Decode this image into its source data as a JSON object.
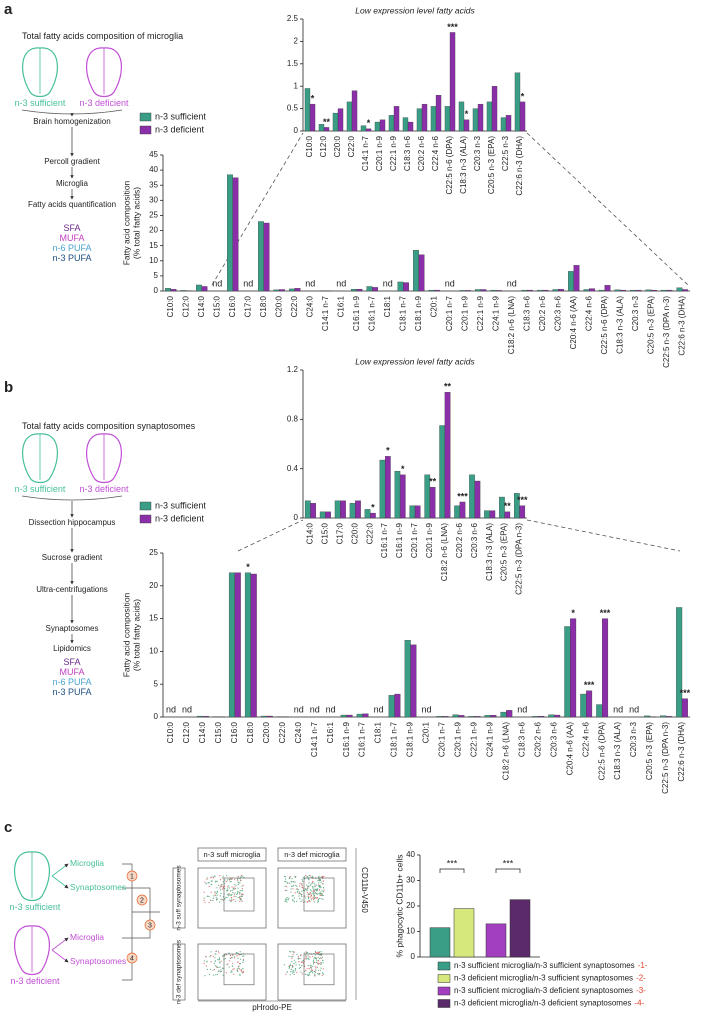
{
  "chart_data": [
    {
      "type": "grouped_bar",
      "ylabel": [
        "Fatty acid composition",
        "(% total fatty acids)"
      ],
      "categories": [
        "C10:0",
        "C12:0",
        "C14:0",
        "C15:0",
        "C16:0",
        "C17:0",
        "C18:0",
        "C20:0",
        "C22:0",
        "C24:0",
        "C14:1 n-7",
        "C16:1",
        "C16:1 n-9",
        "C16:1 n-7",
        "C18:1",
        "C18:1 n-7",
        "C18:1 n-9",
        "C20:1",
        "C20:1 n-7",
        "C20:1 n-9",
        "C22:1 n-9",
        "C24:1 n-9",
        "C18:2 n-6 (LNA)",
        "C18:3 n-6",
        "C20:2 n-6",
        "C20:3 n-6",
        "C20:4 n-6 (AA)",
        "C22:4 n-6",
        "C22:5 n-6 (DPA)",
        "C18:3 n-3 (ALA)",
        "C20:3 n-3",
        "C20:5 n-3 (EPA)",
        "C22:5 n-3 (DPA n-3)",
        "C22:6 n-3 (DHA)"
      ],
      "category_colors": [
        "#6b2a8c",
        "#6b2a8c",
        "#6b2a8c",
        "#6b2a8c",
        "#6b2a8c",
        "#6b2a8c",
        "#6b2a8c",
        "#6b2a8c",
        "#6b2a8c",
        "#6b2a8c",
        "#c23fc2",
        "#c23fc2",
        "#c23fc2",
        "#c23fc2",
        "#c23fc2",
        "#c23fc2",
        "#c23fc2",
        "#c23fc2",
        "#c23fc2",
        "#c23fc2",
        "#c23fc2",
        "#c23fc2",
        "#4aa3cf",
        "#4aa3cf",
        "#4aa3cf",
        "#4aa3cf",
        "#4aa3cf",
        "#4aa3cf",
        "#4aa3cf",
        "#1f4e80",
        "#1f4e80",
        "#1f4e80",
        "#1f4e80",
        "#1f4e80"
      ],
      "value_labels": [
        null,
        null,
        null,
        "nd",
        null,
        "nd",
        null,
        null,
        null,
        "nd",
        null,
        "nd",
        null,
        null,
        "nd",
        null,
        null,
        null,
        "nd",
        null,
        null,
        null,
        "nd",
        null,
        null,
        null,
        null,
        null,
        null,
        null,
        null,
        null,
        null,
        null
      ],
      "series": [
        {
          "name": "n-3 sufficient",
          "color": "#3a9e86",
          "values": [
            0.9,
            0.2,
            2,
            null,
            38.5,
            null,
            23,
            0.4,
            0.7,
            null,
            0.1,
            null,
            0.6,
            1.5,
            null,
            3,
            13.5,
            0.3,
            null,
            0.2,
            0.5,
            0.3,
            null,
            0.3,
            0.3,
            0.5,
            6.5,
            0.5,
            0.3,
            0.4,
            0.3,
            0.4,
            0.3,
            1.1
          ]
        },
        {
          "name": "n-3 deficient",
          "color": "#8b2fa8",
          "values": [
            0.6,
            0.1,
            1.5,
            null,
            37.5,
            null,
            22.5,
            0.5,
            0.9,
            null,
            0.05,
            null,
            0.6,
            1.2,
            null,
            2.8,
            12,
            0.3,
            null,
            0.2,
            0.5,
            0.2,
            null,
            0.3,
            0.3,
            0.6,
            8.5,
            0.8,
            1.9,
            0.3,
            0.3,
            0.3,
            0.3,
            0.5
          ]
        }
      ],
      "ylim": [
        0,
        45
      ],
      "yticks": [
        0,
        5,
        10,
        15,
        20,
        25,
        30,
        35,
        40,
        45
      ]
    },
    {
      "type": "grouped_bar",
      "title": "Low expression level fatty acids",
      "categories": [
        "C10:0",
        "C12:0",
        "C20:0",
        "C22:0",
        "C14:1 n-7",
        "C20:1 n-9",
        "C22:1 n-9",
        "C18:3 n-6",
        "C20:2 n-6",
        "C22:4 n-6",
        "C22:5 n-6 (DPA)",
        "C18:3 n-3 (ALA)",
        "C20:3 n-3",
        "C20:5 n-3 (EPA)",
        "C22:5 n-3",
        "C22:6 n-3 (DHA)"
      ],
      "category_colors": [
        "#6b2a8c",
        "#6b2a8c",
        "#6b2a8c",
        "#6b2a8c",
        "#c23fc2",
        "#c23fc2",
        "#c23fc2",
        "#4aa3cf",
        "#4aa3cf",
        "#4aa3cf",
        "#4aa3cf",
        "#1f4e80",
        "#1f4e80",
        "#1f4e80",
        "#1f4e80",
        "#1f4e80"
      ],
      "series": [
        {
          "color": "#3a9e86",
          "values": [
            0.95,
            0.15,
            0.4,
            0.65,
            0.12,
            0.2,
            0.35,
            0.3,
            0.5,
            0.55,
            0.55,
            0.65,
            0.5,
            0.65,
            0.3,
            1.3
          ]
        },
        {
          "color": "#8b2fa8",
          "values": [
            0.6,
            0.08,
            0.5,
            0.9,
            0.05,
            0.25,
            0.55,
            0.2,
            0.6,
            0.8,
            2.2,
            0.25,
            0.6,
            1.0,
            0.35,
            0.65
          ],
          "annotations": [
            "*",
            "**",
            null,
            null,
            "*",
            null,
            null,
            null,
            null,
            null,
            "***",
            "*",
            null,
            null,
            null,
            "*"
          ]
        }
      ],
      "ylim": [
        0,
        2.5
      ],
      "yticks": [
        0,
        0.5,
        1,
        1.5,
        2,
        2.5
      ]
    },
    {
      "type": "grouped_bar",
      "ylabel": [
        "Fatty acid composition",
        "(% total fatty acids)"
      ],
      "categories": [
        "C10:0",
        "C12:0",
        "C14:0",
        "C15:0",
        "C16:0",
        "C18:0",
        "C20:0",
        "C22:0",
        "C24:0",
        "C14:1 n-7",
        "C16:1",
        "C16:1 n-9",
        "C16:1 n-7",
        "C18:1",
        "C18:1 n-7",
        "C18:1 n-9",
        "C20:1",
        "C20:1 n-7",
        "C20:1 n-9",
        "C22:1 n-9",
        "C24:1 n-9",
        "C18:2 n-6 (LNA)",
        "C18:3 n-6",
        "C20:2 n-6",
        "C20:3 n-6",
        "C20:4 n-6 (AA)",
        "C22:4 n-6",
        "C22:5 n-6 (DPA)",
        "C18:3 n-3 (ALA)",
        "C20:3 n-3",
        "C20:5 n-3 (EPA)",
        "C22:5 n-3 (DPA n-3)",
        "C22:6 n-3 (DHA)"
      ],
      "category_colors": [
        "#6b2a8c",
        "#6b2a8c",
        "#6b2a8c",
        "#6b2a8c",
        "#6b2a8c",
        "#6b2a8c",
        "#6b2a8c",
        "#6b2a8c",
        "#6b2a8c",
        "#c23fc2",
        "#c23fc2",
        "#c23fc2",
        "#c23fc2",
        "#c23fc2",
        "#c23fc2",
        "#c23fc2",
        "#c23fc2",
        "#c23fc2",
        "#c23fc2",
        "#c23fc2",
        "#c23fc2",
        "#4aa3cf",
        "#4aa3cf",
        "#4aa3cf",
        "#4aa3cf",
        "#4aa3cf",
        "#4aa3cf",
        "#4aa3cf",
        "#1f4e80",
        "#1f4e80",
        "#1f4e80",
        "#1f4e80",
        "#1f4e80"
      ],
      "value_labels": [
        "nd",
        "nd",
        null,
        null,
        null,
        null,
        null,
        null,
        "nd",
        "nd",
        "nd",
        null,
        null,
        "nd",
        null,
        null,
        "nd",
        null,
        null,
        null,
        null,
        null,
        "nd",
        null,
        null,
        null,
        null,
        null,
        "nd",
        "nd",
        null,
        null,
        null
      ],
      "series": [
        {
          "name": "n-3 sufficient",
          "color": "#3a9e86",
          "values": [
            null,
            null,
            0.14,
            0.05,
            22,
            22,
            0.15,
            0.06,
            null,
            null,
            null,
            0.3,
            0.45,
            null,
            3.3,
            11.7,
            null,
            0.1,
            0.35,
            0.1,
            0.25,
            0.75,
            null,
            0.1,
            0.35,
            13.8,
            3.5,
            1.9,
            null,
            null,
            0.17,
            0.2,
            16.7
          ],
          "annotations": [
            null,
            null,
            null,
            null,
            null,
            "*",
            null,
            null,
            null,
            null,
            null,
            null,
            null,
            null,
            null,
            null,
            null,
            null,
            null,
            null,
            null,
            null,
            null,
            null,
            null,
            null,
            null,
            null,
            null,
            null,
            null,
            null,
            null
          ]
        },
        {
          "name": "n-3 deficient",
          "color": "#8b2fa8",
          "values": [
            null,
            null,
            0.12,
            0.05,
            22,
            21.8,
            0.15,
            0.03,
            null,
            null,
            null,
            0.3,
            0.5,
            null,
            3.5,
            11,
            null,
            0.1,
            0.25,
            0.1,
            0.28,
            1.02,
            null,
            0.13,
            0.3,
            15,
            4,
            15,
            null,
            null,
            0.05,
            0.1,
            2.8
          ],
          "annotations": [
            null,
            null,
            null,
            null,
            null,
            null,
            null,
            null,
            null,
            null,
            null,
            null,
            null,
            null,
            null,
            null,
            null,
            null,
            null,
            null,
            null,
            null,
            null,
            null,
            null,
            "*",
            "***",
            "***",
            null,
            null,
            null,
            null,
            "***"
          ]
        }
      ],
      "ylim": [
        0,
        25
      ],
      "yticks": [
        0,
        5,
        10,
        15,
        20,
        25
      ]
    },
    {
      "type": "grouped_bar",
      "title": "Low expression level fatty acids",
      "categories": [
        "C14:0",
        "C15:0",
        "C17:0",
        "C20:0",
        "C22:0",
        "C16:1 n-7",
        "C16:1 n-9",
        "C20:1 n-7",
        "C20:1 n-9",
        "C18:2 n-6 (LNA)",
        "C20:2 n-6",
        "C20:3 n-6",
        "C18:3 n-3 (ALA)",
        "C20:5 n-3 (EPA)",
        "C22:5 n-3 (DPA n-3)"
      ],
      "category_colors": [
        "#6b2a8c",
        "#6b2a8c",
        "#6b2a8c",
        "#6b2a8c",
        "#6b2a8c",
        "#c23fc2",
        "#c23fc2",
        "#c23fc2",
        "#c23fc2",
        "#4aa3cf",
        "#4aa3cf",
        "#4aa3cf",
        "#1f4e80",
        "#1f4e80",
        "#1f4e80"
      ],
      "series": [
        {
          "color": "#3a9e86",
          "values": [
            0.14,
            0.05,
            0.14,
            0.12,
            0.07,
            0.47,
            0.38,
            0.1,
            0.35,
            0.75,
            0.1,
            0.35,
            0.06,
            0.17,
            0.2
          ]
        },
        {
          "color": "#8b2fa8",
          "values": [
            0.12,
            0.05,
            0.14,
            0.14,
            0.04,
            0.5,
            0.35,
            0.1,
            0.25,
            1.02,
            0.13,
            0.3,
            0.06,
            0.05,
            0.1
          ],
          "annotations": [
            null,
            null,
            null,
            null,
            "*",
            "*",
            "*",
            null,
            "**",
            "**",
            "***",
            null,
            null,
            "**",
            "***"
          ]
        }
      ],
      "ylim": [
        0,
        1.2
      ],
      "yticks": [
        0,
        0.4,
        0.8,
        1.2
      ]
    },
    {
      "type": "bar",
      "ylabel": "% phagocytic CD11b+ cells",
      "series": [
        {
          "name": "n-3 sufficient microglia/n-3 sufficient synaptosomes",
          "tag": "-1-",
          "color": "#3a9e86",
          "values": [
            11.5
          ]
        },
        {
          "name": "n-3 deficient microglia/n-3 sufficient synaptosomes",
          "tag": "-2-",
          "color": "#d6e77c",
          "values": [
            19
          ]
        },
        {
          "name": "n-3 sufficient microglia/n-3 deficient synaptosomes",
          "tag": "-3-",
          "color": "#a23fc0",
          "values": [
            13
          ]
        },
        {
          "name": "n-3 deficient microglia/n-3 deficient synaptosomes",
          "tag": "-4-",
          "color": "#5a2a6a",
          "values": [
            22.5
          ]
        }
      ],
      "tag_color": "#e0402a",
      "annotations": [
        "***",
        "***"
      ],
      "ylim": [
        0,
        40
      ],
      "yticks": [
        0,
        10,
        20,
        30,
        40
      ]
    }
  ],
  "panels": [
    {
      "label": "a",
      "title": "Total fatty acids composition of microglia",
      "diets": [
        "n-3 sufficient",
        "n-3 deficient"
      ],
      "steps": [
        "Brain homogenization",
        "Percoll gradient",
        "Microglia",
        "Fatty acids quantification"
      ],
      "classes": [
        {
          "name": "SFA",
          "color": "#6b2a8c"
        },
        {
          "name": "MUFA",
          "color": "#c23fc2"
        },
        {
          "name": "n-6 PUFA",
          "color": "#4aa3cf"
        },
        {
          "name": "n-3 PUFA",
          "color": "#1f4e80"
        }
      ]
    },
    {
      "label": "b",
      "title": "Total fatty acids composition synaptosomes",
      "diets": [
        "n-3 sufficient",
        "n-3 deficient"
      ],
      "steps": [
        "Dissection hippocampus",
        "Sucrose gradient",
        "Ultra-centrifugations",
        "Synaptosomes",
        "Lipidomics"
      ],
      "classes": [
        {
          "name": "SFA",
          "color": "#6b2a8c"
        },
        {
          "name": "MUFA",
          "color": "#c23fc2"
        },
        {
          "name": "n-6 PUFA",
          "color": "#4aa3cf"
        },
        {
          "name": "n-3 PUFA",
          "color": "#1f4e80"
        }
      ]
    },
    {
      "label": "c",
      "diets": [
        "n-3 sufficient",
        "n-3 deficient"
      ],
      "fractions": [
        "Microglia",
        "Synaptosomes"
      ],
      "numbers": [
        "1",
        "2",
        "3",
        "4"
      ],
      "facs": {
        "columns": [
          "n-3 suff microglia",
          "n-3 def microglia"
        ],
        "rows": [
          "n-3 suff synaptosomes",
          "n-3 def synaptosomes"
        ],
        "xlabel": "pHrodo-PE",
        "ylabel": "CD11b-V450"
      }
    }
  ]
}
